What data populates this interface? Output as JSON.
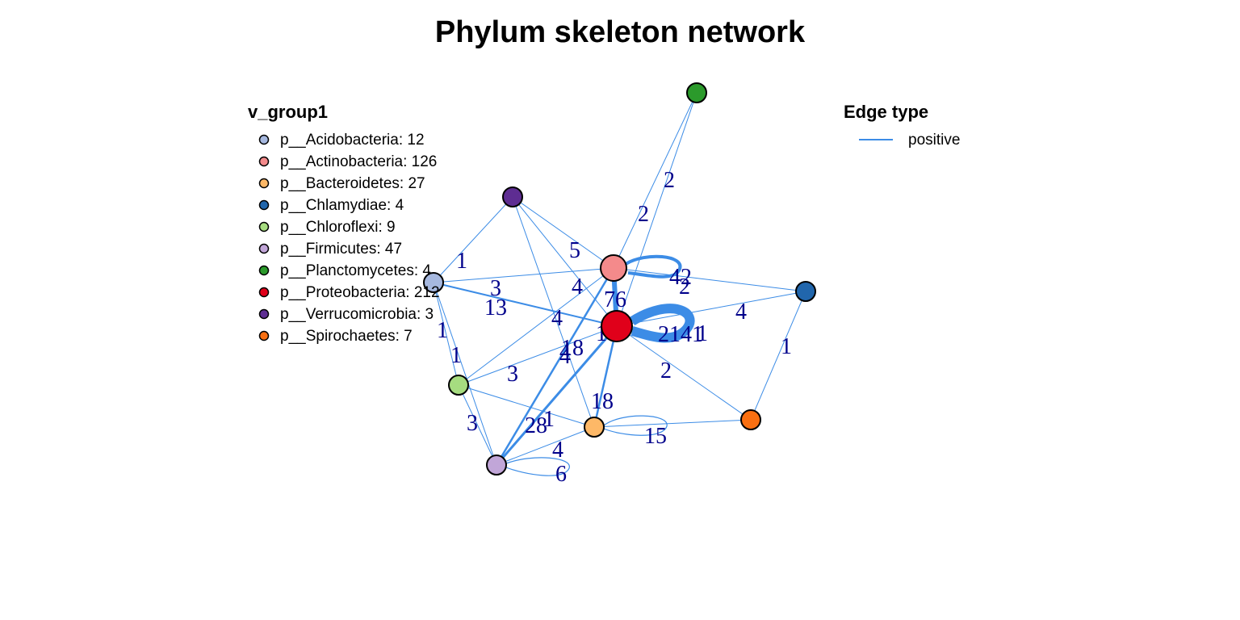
{
  "title": "Phylum skeleton network",
  "edge_color": "#3C8CE6",
  "node_legend": {
    "title": "v_group1",
    "items": [
      {
        "label": "p__Acidobacteria: 12",
        "color": "#A6B8DF"
      },
      {
        "label": "p__Actinobacteria: 126",
        "color": "#F48A8B"
      },
      {
        "label": "p__Bacteroidetes: 27",
        "color": "#FDB867"
      },
      {
        "label": "p__Chlamydiae: 4",
        "color": "#2166AC"
      },
      {
        "label": "p__Chloroflexi: 9",
        "color": "#A6DC80"
      },
      {
        "label": "p__Firmicutes: 47",
        "color": "#C1A6D8"
      },
      {
        "label": "p__Planctomycetes: 4",
        "color": "#2B9A2B"
      },
      {
        "label": "p__Proteobacteria: 212",
        "color": "#E0001A"
      },
      {
        "label": "p__Verrucomicrobia: 3",
        "color": "#5E2D92"
      },
      {
        "label": "p__Spirochaetes: 7",
        "color": "#F96F11"
      }
    ]
  },
  "edge_legend": {
    "title": "Edge type",
    "items": [
      {
        "label": "positive",
        "color": "#3C8CE6"
      }
    ]
  },
  "network": {
    "nodes": [
      {
        "id": "Acidobacteria",
        "color": "#A6B8DF"
      },
      {
        "id": "Actinobacteria",
        "color": "#F48A8B"
      },
      {
        "id": "Bacteroidetes",
        "color": "#FDB867"
      },
      {
        "id": "Chlamydiae",
        "color": "#2166AC"
      },
      {
        "id": "Chloroflexi",
        "color": "#A6DC80"
      },
      {
        "id": "Firmicutes",
        "color": "#C1A6D8"
      },
      {
        "id": "Planctomycetes",
        "color": "#2B9A2B"
      },
      {
        "id": "Proteobacteria",
        "color": "#E0001A"
      },
      {
        "id": "Verrucomicrobia",
        "color": "#5E2D92"
      },
      {
        "id": "Spirochaetes",
        "color": "#F96F11"
      }
    ],
    "edges": [
      {
        "source": "Actinobacteria",
        "target": "Actinobacteria",
        "weight": "42"
      },
      {
        "source": "Proteobacteria",
        "target": "Proteobacteria",
        "weight": "2141"
      },
      {
        "source": "Bacteroidetes",
        "target": "Bacteroidetes",
        "weight": "15"
      },
      {
        "source": "Firmicutes",
        "target": "Firmicutes",
        "weight": "6"
      },
      {
        "source": "Actinobacteria",
        "target": "Proteobacteria",
        "weight": "76"
      },
      {
        "source": "Proteobacteria",
        "target": "Firmicutes",
        "weight": "28"
      },
      {
        "source": "Proteobacteria",
        "target": "Bacteroidetes",
        "weight": "18"
      },
      {
        "source": "Actinobacteria",
        "target": "Firmicutes",
        "weight": "4"
      },
      {
        "source": "Acidobacteria",
        "target": "Proteobacteria",
        "weight": "13"
      },
      {
        "source": "Acidobacteria",
        "target": "Actinobacteria",
        "weight": "3"
      },
      {
        "source": "Verrucomicrobia",
        "target": "Actinobacteria",
        "weight": "5"
      },
      {
        "source": "Verrucomicrobia",
        "target": "Proteobacteria",
        "weight": "4"
      },
      {
        "source": "Verrucomicrobia",
        "target": "Bacteroidetes",
        "weight": "18"
      },
      {
        "source": "Verrucomicrobia",
        "target": "Acidobacteria",
        "weight": "1"
      },
      {
        "source": "Planctomycetes",
        "target": "Actinobacteria",
        "weight": "2"
      },
      {
        "source": "Planctomycetes",
        "target": "Proteobacteria",
        "weight": "2"
      },
      {
        "source": "Actinobacteria",
        "target": "Chlamydiae",
        "weight": "2"
      },
      {
        "source": "Proteobacteria",
        "target": "Chlamydiae",
        "weight": "4"
      },
      {
        "source": "Chlamydiae",
        "target": "Spirochaetes",
        "weight": "1"
      },
      {
        "source": "Proteobacteria",
        "target": "Spirochaetes",
        "weight": "2"
      },
      {
        "source": "Chloroflexi",
        "target": "Actinobacteria",
        "weight": "4"
      },
      {
        "source": "Chloroflexi",
        "target": "Proteobacteria",
        "weight": "3"
      },
      {
        "source": "Acidobacteria",
        "target": "Chloroflexi",
        "weight": "1"
      },
      {
        "source": "Acidobacteria",
        "target": "Firmicutes",
        "weight": "1"
      },
      {
        "source": "Chloroflexi",
        "target": "Firmicutes",
        "weight": "3"
      },
      {
        "source": "Chloroflexi",
        "target": "Bacteroidetes",
        "weight": "1"
      },
      {
        "source": "Firmicutes",
        "target": "Bacteroidetes",
        "weight": "4"
      },
      {
        "source": "Bacteroidetes",
        "target": "Spirochaetes",
        "weight": "1"
      },
      {
        "source": "Proteobacteria",
        "target": "Firmicutes",
        "weight": "4"
      },
      {
        "source": "Proteobacteria",
        "target": "Bacteroidetes",
        "weight": "1"
      }
    ]
  }
}
